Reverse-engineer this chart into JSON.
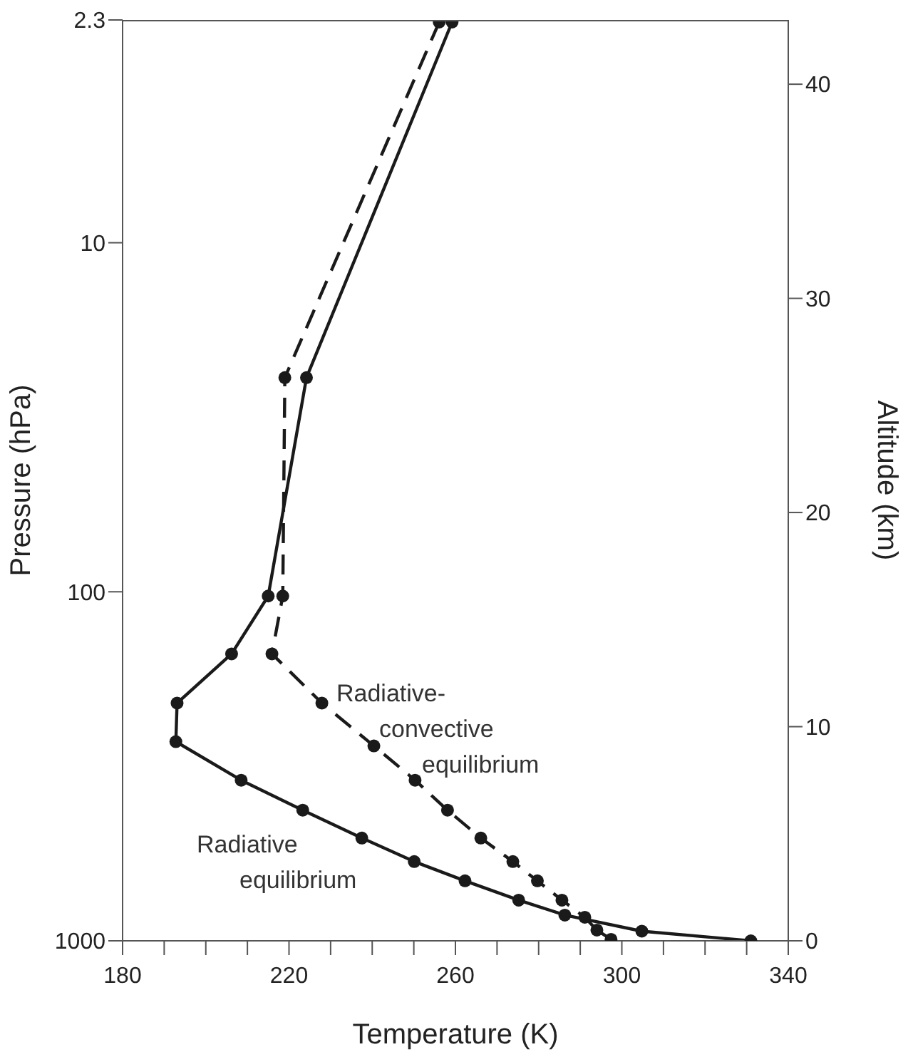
{
  "chart_data": {
    "type": "line",
    "xlabel": "Temperature  (K)",
    "ylabel": "Pressure  (hPa)",
    "y2label": "Altitude  (km)",
    "xlim": [
      180,
      340
    ],
    "xticks": [
      180,
      {
        "value": 190,
        "label": null
      },
      {
        "value": 200,
        "label": null
      },
      {
        "value": 210,
        "label": null
      },
      220,
      {
        "value": 230,
        "label": null
      },
      {
        "value": 240,
        "label": null
      },
      {
        "value": 250,
        "label": null
      },
      260,
      {
        "value": 270,
        "label": null
      },
      {
        "value": 280,
        "label": null
      },
      {
        "value": 290,
        "label": null
      },
      300,
      {
        "value": 310,
        "label": null
      },
      {
        "value": 320,
        "label": null
      },
      {
        "value": 330,
        "label": null
      },
      340
    ],
    "ylim": [
      1000,
      2.3
    ],
    "yticks": [
      1000,
      100,
      10,
      2.3
    ],
    "log": "y",
    "y2lim": [
      0,
      43
    ],
    "y2ticks": [
      0,
      10,
      20,
      30,
      40
    ],
    "marker": "circle",
    "series": [
      {
        "name": "Radiative equilibrium",
        "color": "#1a1a1a",
        "line_style": "solid",
        "axis": "y2",
        "x": [
          259.2,
          224.2,
          215.0,
          206.2,
          193.1,
          192.8,
          208.5,
          223.3,
          237.5,
          250.1,
          262.3,
          275.2,
          286.3,
          304.8,
          331.0
        ],
        "values": [
          42.9,
          26.3,
          16.1,
          13.4,
          11.1,
          9.3,
          7.5,
          6.1,
          4.8,
          3.7,
          2.8,
          1.9,
          1.2,
          0.45,
          0
        ]
      },
      {
        "name": "Radiative-convective equilibrium",
        "color": "#1a1a1a",
        "line_style": "dashed",
        "axis": "y2",
        "x": [
          256.1,
          219.0,
          218.5,
          215.9,
          227.9,
          240.4,
          250.3,
          258.1,
          266.1,
          273.8,
          279.7,
          285.6,
          291.1,
          294.0,
          297.4
        ],
        "values": [
          42.9,
          26.3,
          16.1,
          13.4,
          11.1,
          9.1,
          7.5,
          6.1,
          4.8,
          3.7,
          2.8,
          1.9,
          1.1,
          0.5,
          0.07
        ]
      }
    ]
  }
}
